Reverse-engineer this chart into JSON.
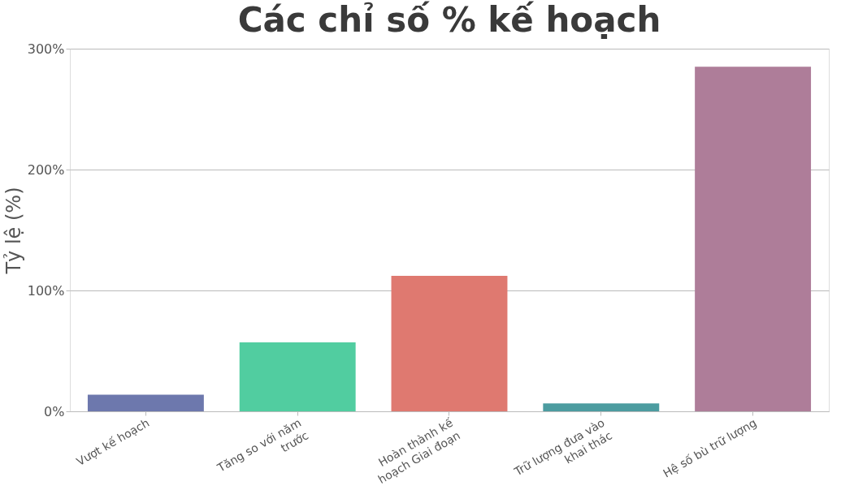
{
  "chart_data": {
    "type": "bar",
    "title": "Các chỉ số % kế hoạch",
    "ylabel": "Tỷ lệ (%)",
    "categories": [
      "Vượt kế hoạch",
      "Tăng so với năm trước",
      "Hoàn thành kế hoạch Giai đoạn",
      "Trữ lượng đưa vào khai thác",
      "Hệ số bù trữ lượng"
    ],
    "values": [
      13.7,
      57,
      112,
      6.5,
      285
    ],
    "colors": [
      "#6d78ad",
      "#51cda0",
      "#df7970",
      "#4c9ca0",
      "#ae7d99"
    ],
    "ylim": [
      0,
      300
    ],
    "yticks": [
      {
        "value": 0,
        "label": "0%"
      },
      {
        "value": 100,
        "label": "100%"
      },
      {
        "value": 200,
        "label": "200%"
      },
      {
        "value": 300,
        "label": "300%"
      }
    ],
    "grid": "y"
  }
}
